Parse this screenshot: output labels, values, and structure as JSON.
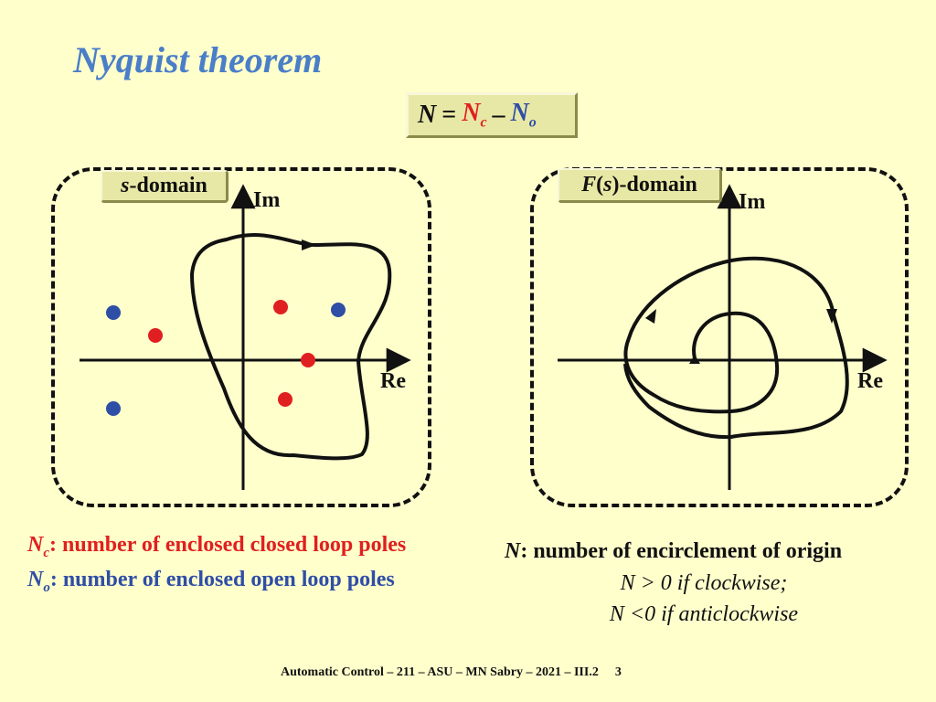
{
  "title": "Nyquist theorem",
  "formula": {
    "lhs": "N",
    "eq": "=",
    "nc": "N",
    "nc_sub": "c",
    "minus": "–",
    "no": "N",
    "no_sub": "o"
  },
  "left_panel": {
    "label_var": "s",
    "label_text": "-domain",
    "axis_im": "Im",
    "axis_re": "Re",
    "closed_loop_pole_color": "#e02020",
    "open_loop_pole_color": "#2f4ea6"
  },
  "right_panel": {
    "label_var": "F",
    "label_paren_open": "(",
    "label_arg": "s",
    "label_paren_close": ")",
    "label_text": "-domain",
    "axis_im": "Im",
    "axis_re": "Re"
  },
  "notes": {
    "nc_sym": "N",
    "nc_sub": "c",
    "nc_text": ": number of enclosed closed loop poles",
    "no_sym": "N",
    "no_sub": "o",
    "no_text": ": number of enclosed  open  loop poles",
    "n_sym": "N",
    "n_text": ": number of encirclement of origin",
    "clockwise": "N > 0 if clockwise;",
    "anticlockwise": "N <0 if anticlockwise"
  },
  "footer": {
    "text": "Automatic Control – 211 – ASU – MN Sabry – 2021 – III.2",
    "page": "3"
  }
}
